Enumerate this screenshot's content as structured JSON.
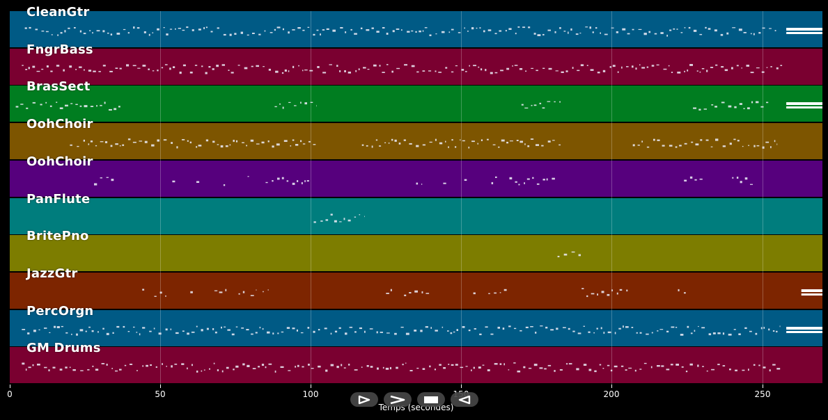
{
  "tracks": [
    {
      "name": "CleanGtr",
      "color": "#005a85"
    },
    {
      "name": "FngrBass",
      "color": "#7a0030"
    },
    {
      "name": "BrasSect",
      "color": "#007d20"
    },
    {
      "name": "OohChoir",
      "color": "#7d5500"
    },
    {
      "name": "OohChoir",
      "color": "#56007d"
    },
    {
      "name": "PanFlute",
      "color": "#007d7d"
    },
    {
      "name": "BritePno",
      "color": "#7d7d00"
    },
    {
      "name": "JazzGtr",
      "color": "#7d2500"
    },
    {
      "name": "PercOrgn",
      "color": "#005a85"
    },
    {
      "name": "GM Drums",
      "color": "#7a0030"
    }
  ],
  "axis": {
    "label": "Temps (secondes)",
    "min": 0,
    "max": 270,
    "ticks": [
      {
        "value": 0,
        "label": "0"
      },
      {
        "value": 50,
        "label": "50"
      },
      {
        "value": 100,
        "label": "100"
      },
      {
        "value": 150,
        "label": "150"
      },
      {
        "value": 200,
        "label": "200"
      },
      {
        "value": 250,
        "label": "250"
      }
    ]
  },
  "activity": [
    [
      [
        5,
        256
      ]
    ],
    [
      [
        4,
        257
      ]
    ],
    [
      [
        2,
        37
      ],
      [
        88,
        102
      ],
      [
        170,
        183
      ],
      [
        227,
        252
      ]
    ],
    [
      [
        20,
        102
      ],
      [
        117,
        183
      ],
      [
        207,
        255
      ]
    ],
    [
      [
        28,
        35
      ],
      [
        54,
        55
      ],
      [
        62,
        63
      ],
      [
        71,
        72
      ],
      [
        79,
        80
      ],
      [
        85,
        100
      ],
      [
        135,
        137
      ],
      [
        144,
        145
      ],
      [
        151,
        153
      ],
      [
        160,
        162
      ],
      [
        166,
        182
      ],
      [
        224,
        231
      ],
      [
        240,
        247
      ]
    ],
    [
      [
        101,
        118
      ]
    ],
    [
      [
        182,
        190
      ]
    ],
    [
      [
        44,
        45
      ],
      [
        48,
        52
      ],
      [
        60,
        62
      ],
      [
        68,
        72
      ],
      [
        76,
        78
      ],
      [
        80,
        82
      ],
      [
        84,
        86
      ],
      [
        125,
        127
      ],
      [
        131,
        140
      ],
      [
        154,
        156
      ],
      [
        159,
        166
      ],
      [
        190,
        206
      ],
      [
        222,
        225
      ]
    ],
    [
      [
        4,
        256
      ]
    ],
    [
      [
        4,
        256
      ]
    ]
  ],
  "sustained": [
    [
      258,
      270
    ],
    null,
    [
      258,
      270
    ],
    null,
    null,
    null,
    null,
    [
      263,
      270
    ],
    [
      258,
      270
    ],
    null
  ],
  "controls": [
    {
      "name": "play-reverse-icon"
    },
    {
      "name": "fast-forward-icon"
    },
    {
      "name": "stop-icon"
    },
    {
      "name": "rewind-icon"
    }
  ]
}
